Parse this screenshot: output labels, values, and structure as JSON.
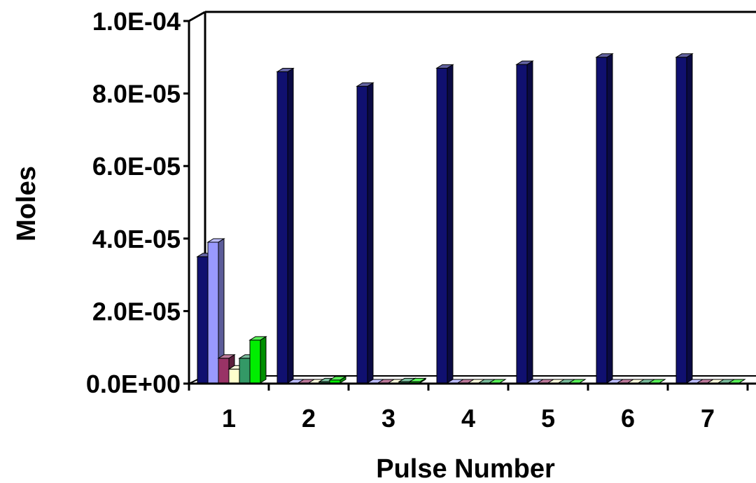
{
  "chart_data": {
    "type": "bar",
    "title": "",
    "xlabel": "Pulse Number",
    "ylabel": "Moles",
    "ylim": [
      0,
      0.0001
    ],
    "y_ticks": [
      "0.0E+00",
      "2.0E-05",
      "4.0E-05",
      "6.0E-05",
      "8.0E-05",
      "1.0E-04"
    ],
    "categories": [
      "1",
      "2",
      "3",
      "4",
      "5",
      "6",
      "7"
    ],
    "grid": false,
    "legend": "none",
    "style": "3d-clustered",
    "series": [
      {
        "color": "#101070",
        "values": [
          3.5e-05,
          8.6e-05,
          8.2e-05,
          8.7e-05,
          8.8e-05,
          9e-05,
          9e-05
        ]
      },
      {
        "color": "#9999ff",
        "values": [
          3.9e-05,
          0,
          0,
          0,
          0,
          0,
          0
        ]
      },
      {
        "color": "#993366",
        "values": [
          7e-06,
          0,
          0,
          0,
          0,
          0,
          0
        ]
      },
      {
        "color": "#ffffcc",
        "values": [
          4e-06,
          0,
          0,
          0,
          0,
          0,
          0
        ]
      },
      {
        "color": "#339966",
        "values": [
          7e-06,
          5e-07,
          5e-07,
          0,
          0,
          0,
          0
        ]
      },
      {
        "color": "#00ee00",
        "values": [
          1.2e-05,
          1e-06,
          5e-07,
          0,
          0,
          0,
          0
        ]
      }
    ]
  }
}
